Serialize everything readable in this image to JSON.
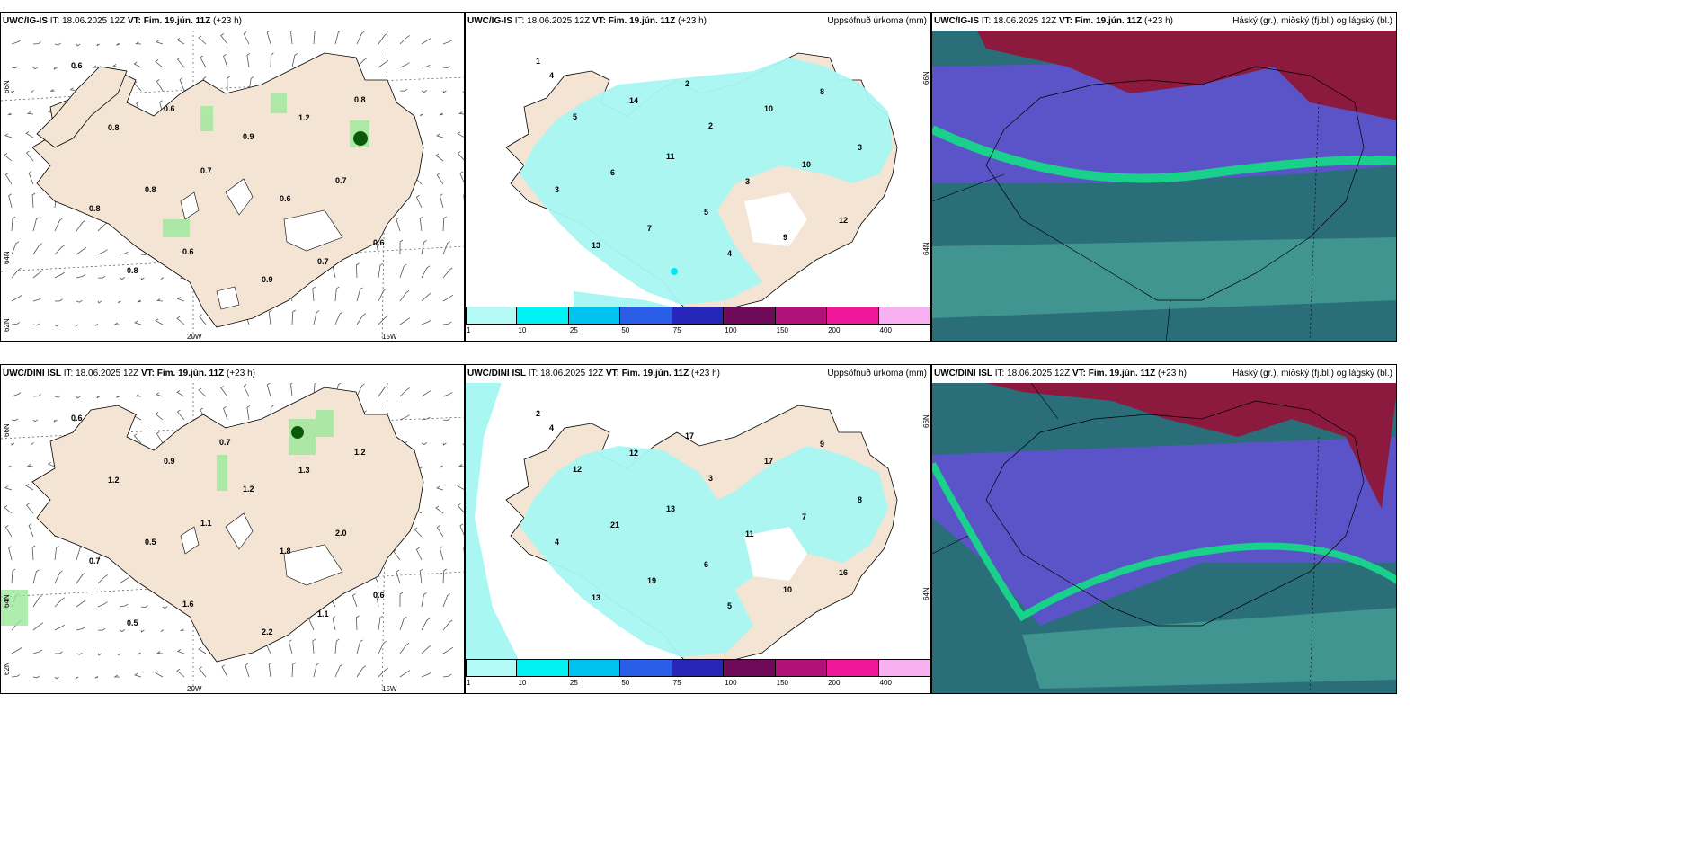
{
  "colors": {
    "land": "#f3e4d4",
    "precip_light": "#a8f7f3",
    "precip_mid": "#00e8f0",
    "sea_green": "#5dcf6f",
    "cloud_high": "#8b1a3e",
    "cloud_mid": "#5a54c8",
    "cloud_low": "#2a6e7a"
  },
  "panels": [
    {
      "model": "UWC/IG-IS",
      "it_label": "IT:",
      "it": "18.06.2025 12Z",
      "vt_label": "VT:",
      "vt": "Fim. 19.jún. 11Z",
      "lead": "(+23 h)",
      "title_right": "",
      "lat_labels": [
        "66N",
        "64N",
        "62N"
      ],
      "lon_labels": [
        "20W",
        "15W"
      ],
      "values": [
        "0.6",
        "0.9",
        "0.8",
        "0.9",
        "0.8",
        "0.6",
        "0.8",
        "1.2",
        "0.8",
        "0.7",
        "0.6",
        "0.7",
        "0.6",
        "0.8",
        "0.7",
        "0.6"
      ]
    },
    {
      "model": "UWC/IG-IS",
      "it_label": "IT:",
      "it": "18.06.2025 12Z",
      "vt_label": "VT:",
      "vt": "Fim. 19.jún. 11Z",
      "lead": "(+23 h)",
      "title_right": "Uppsöfnuð úrkoma (mm)",
      "lat_labels": [
        "66N",
        "64N"
      ],
      "values": [
        "1",
        "2",
        "3",
        "4",
        "5",
        "3",
        "13",
        "10",
        "6",
        "9",
        "14",
        "10",
        "7",
        "8",
        "11",
        "12",
        "2",
        "3",
        "5",
        "4"
      ]
    },
    {
      "model": "UWC/IG-IS",
      "it_label": "IT:",
      "it": "18.06.2025 12Z",
      "vt_label": "VT:",
      "vt": "Fim. 19.jún. 11Z",
      "lead": "(+23 h)",
      "title_right": "Háský (gr.), miðský (fj.bl.) og lágský (bl.)"
    },
    {
      "model": "UWC/DINI ISL",
      "it_label": "IT:",
      "it": "18.06.2025 12Z",
      "vt_label": "VT:",
      "vt": "Fim. 19.jún. 11Z",
      "lead": "(+23 h)",
      "title_right": "",
      "lat_labels": [
        "66N",
        "64N",
        "62N"
      ],
      "lon_labels": [
        "20W",
        "15W"
      ],
      "values": [
        "0.6",
        "1.2",
        "0.7",
        "2.2",
        "1.2",
        "1.8",
        "0.5",
        "1.3",
        "0.5",
        "1.1",
        "0.9",
        "2.0",
        "1.6",
        "1.2",
        "1.1",
        "0.6",
        "0.7"
      ]
    },
    {
      "model": "UWC/DINI ISL",
      "it_label": "IT:",
      "it": "18.06.2025 12Z",
      "vt_label": "VT:",
      "vt": "Fim. 19.jún. 11Z",
      "lead": "(+23 h)",
      "title_right": "Uppsöfnuð úrkoma (mm)",
      "lat_labels": [
        "66N",
        "64N"
      ],
      "values": [
        "2",
        "3",
        "4",
        "5",
        "12",
        "11",
        "13",
        "17",
        "21",
        "10",
        "12",
        "7",
        "19",
        "9",
        "13",
        "16",
        "17",
        "8",
        "6",
        "4"
      ]
    },
    {
      "model": "UWC/DINI ISL",
      "it_label": "IT:",
      "it": "18.06.2025 12Z",
      "vt_label": "VT:",
      "vt": "Fim. 19.jún. 11Z",
      "lead": "(+23 h)",
      "title_right": "Háský (gr.), miðský (fj.bl.) og lágský (bl.)"
    }
  ],
  "colorbar": {
    "colors": [
      "#b4fbf7",
      "#00f2f2",
      "#00c2ee",
      "#2a5de8",
      "#2626b8",
      "#6e0a57",
      "#b0127a",
      "#f0169a",
      "#f8b0f0"
    ],
    "ticks": [
      "1",
      "10",
      "25",
      "50",
      "75",
      "100",
      "150",
      "200",
      "400"
    ]
  }
}
